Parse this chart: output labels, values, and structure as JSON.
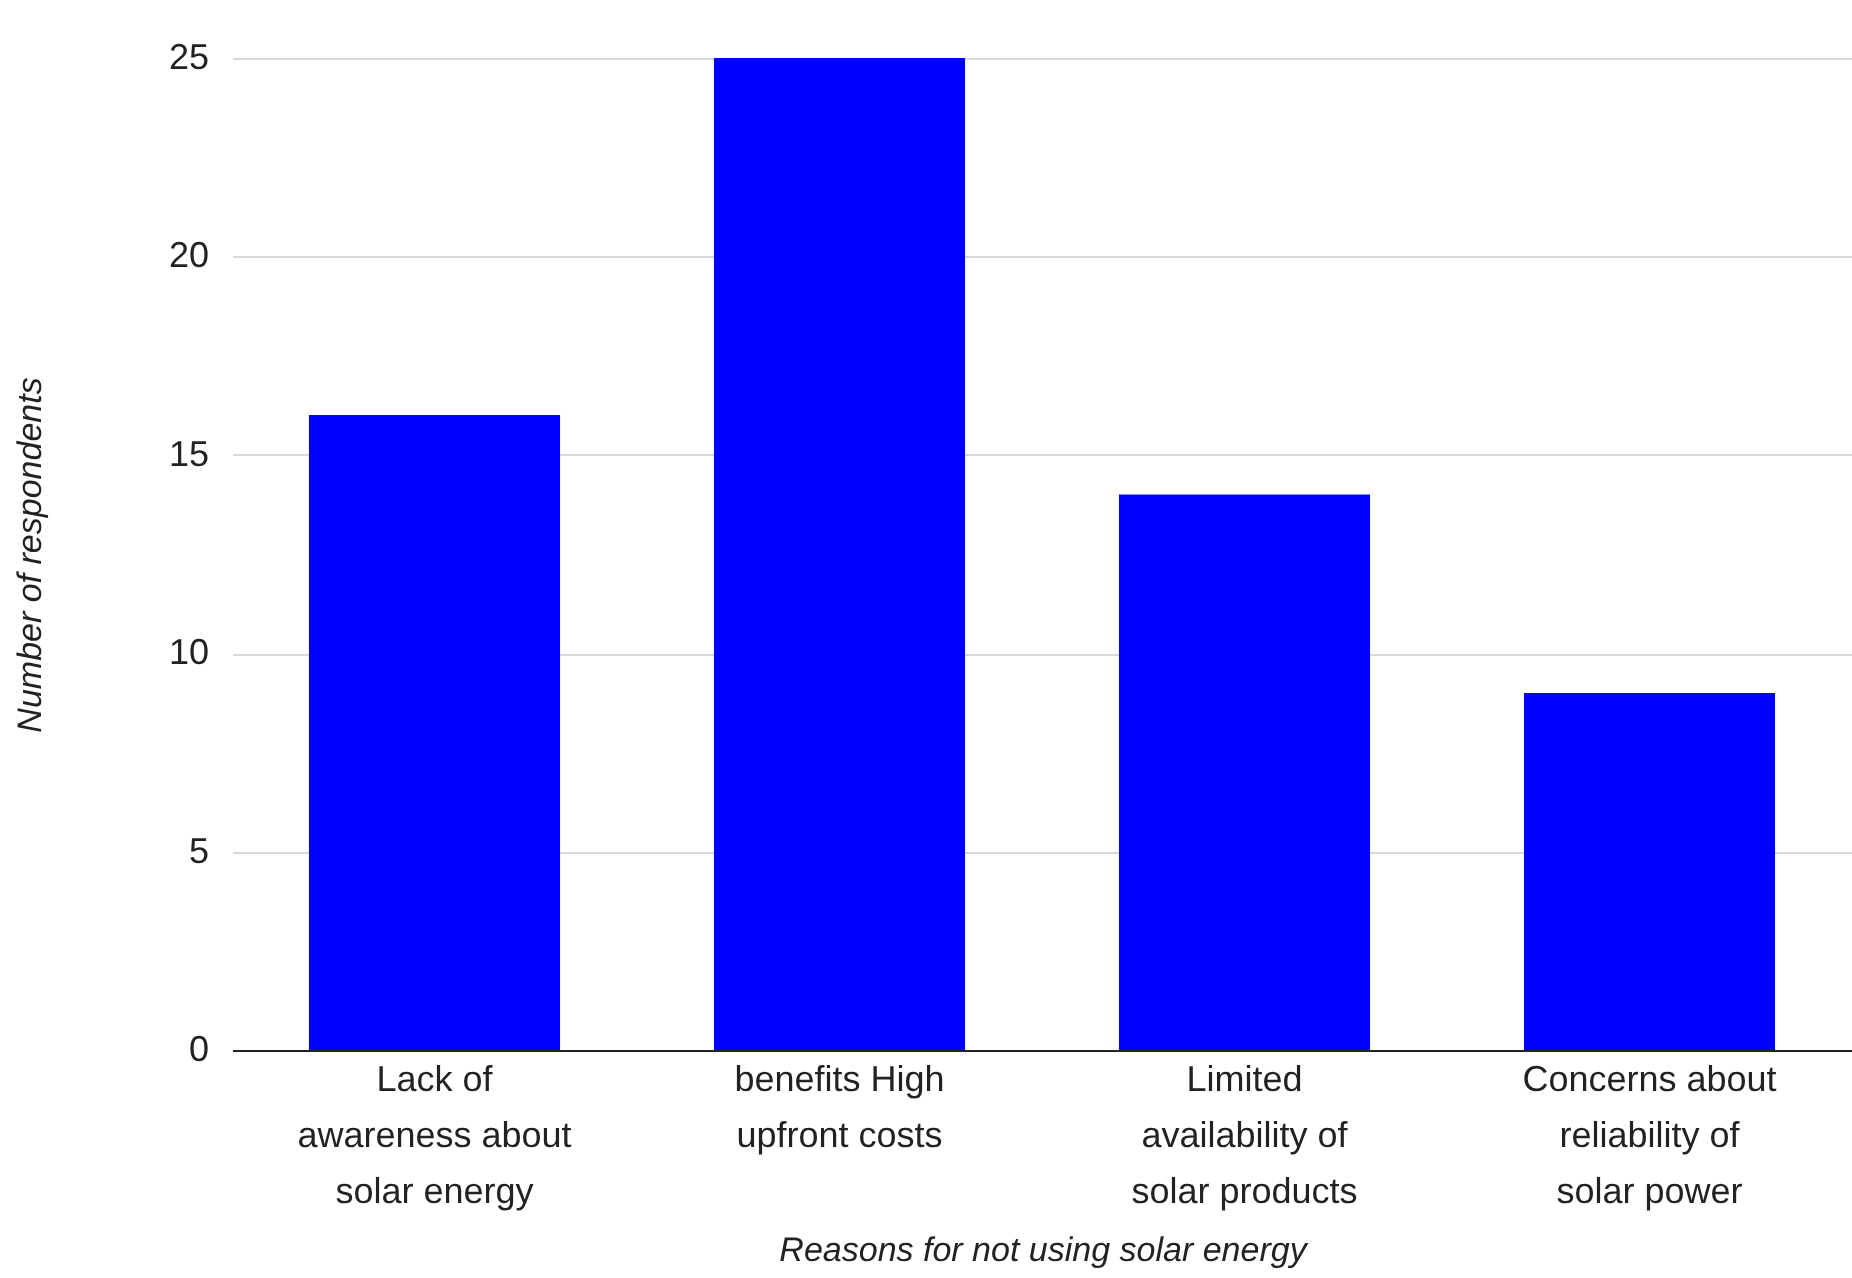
{
  "chart_data": {
    "type": "bar",
    "xlabel": "Reasons for not using solar energy",
    "ylabel": "Number of respondents",
    "categories": [
      "Lack of awareness about solar energy",
      "benefits High upfront costs",
      "Limited availability of solar products",
      "Concerns about reliability of solar power"
    ],
    "values": [
      16,
      25,
      14,
      9
    ],
    "color": "#0000ff",
    "ylim": [
      0,
      25
    ],
    "yticks": [
      0,
      5,
      10,
      15,
      20,
      25
    ],
    "grid": "y"
  }
}
